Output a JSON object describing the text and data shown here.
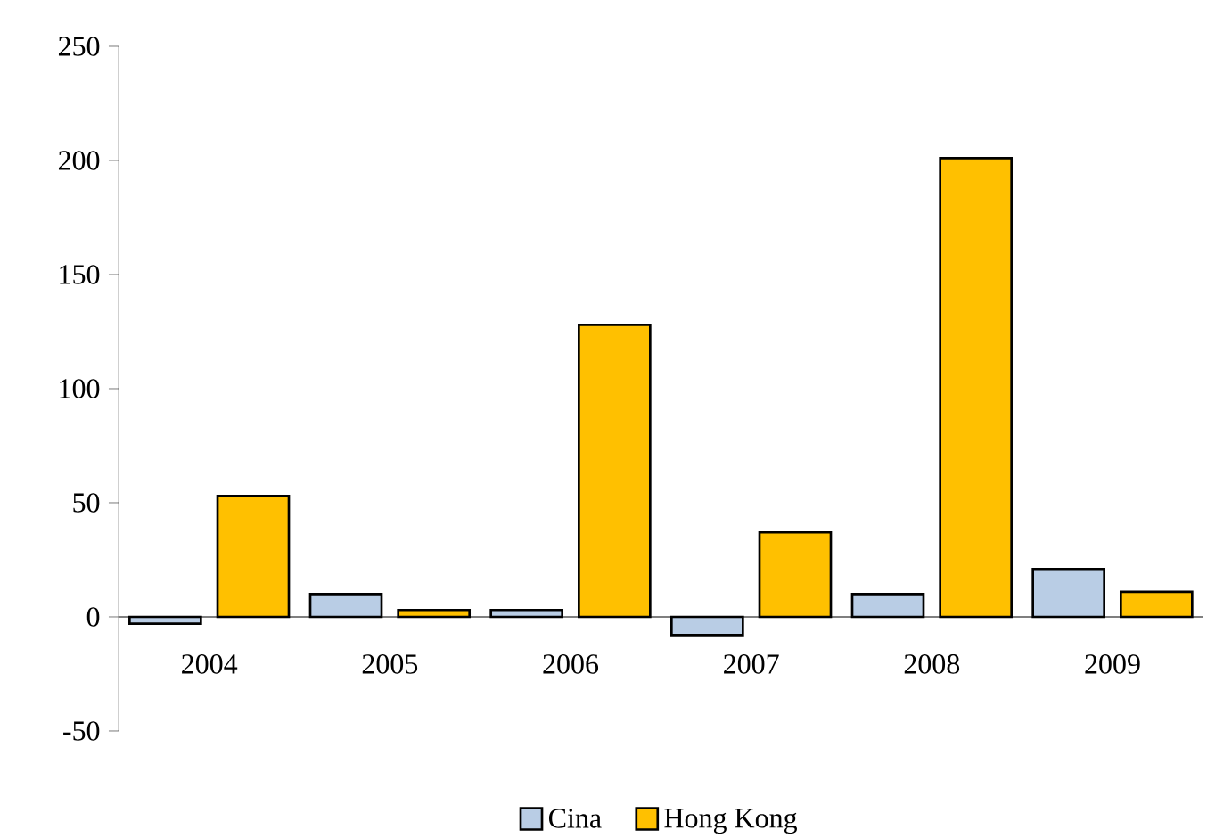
{
  "chart_data": {
    "type": "bar",
    "categories": [
      "2004",
      "2005",
      "2006",
      "2007",
      "2008",
      "2009"
    ],
    "series": [
      {
        "name": "Cina",
        "color": "#b9cde5",
        "values": [
          -3,
          10,
          3,
          -8,
          10,
          21
        ]
      },
      {
        "name": "Hong Kong",
        "color": "#ffc000",
        "values": [
          53,
          3,
          128,
          37,
          201,
          11
        ]
      }
    ],
    "ylim": [
      -50,
      250
    ],
    "yticks": [
      -50,
      0,
      50,
      100,
      150,
      200,
      250
    ],
    "grid": false,
    "legend": "bottom"
  }
}
